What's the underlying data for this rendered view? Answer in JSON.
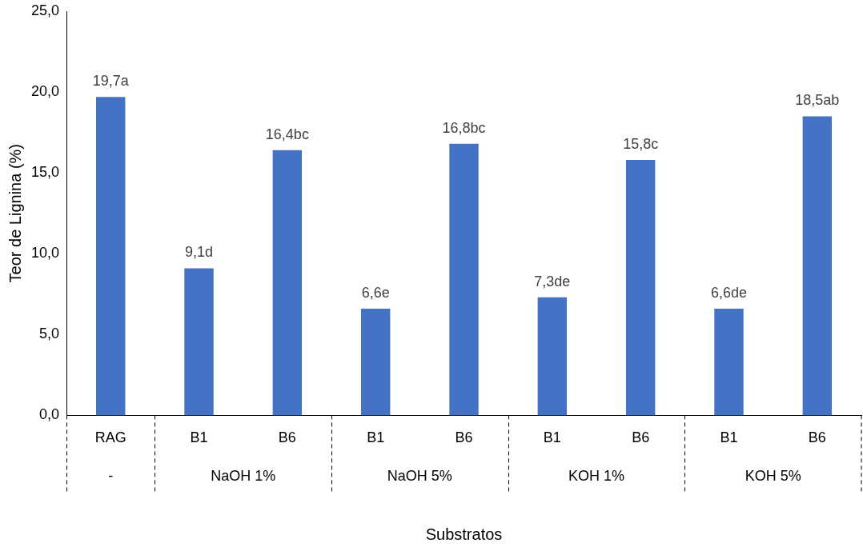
{
  "chart_data": {
    "type": "bar",
    "xlabel": "Substratos",
    "ylabel": "Teor de Lignina (%)",
    "categories": [
      "RAG",
      "B1",
      "B6",
      "B1",
      "B6",
      "B1",
      "B6",
      "B1",
      "B6"
    ],
    "values": [
      19.7,
      9.1,
      16.4,
      6.6,
      16.8,
      7.3,
      15.8,
      6.6,
      18.5
    ],
    "value_labels": [
      "19,7a",
      "9,1d",
      "16,4bc",
      "6,6e",
      "16,8bc",
      "7,3de",
      "15,8c",
      "6,6de",
      "18,5ab"
    ],
    "color": "#4472c4",
    "ylim": [
      0,
      25
    ],
    "yticks": [
      {
        "value": 0,
        "label": "0,0"
      },
      {
        "value": 5,
        "label": "5,0"
      },
      {
        "value": 10,
        "label": "10,0"
      },
      {
        "value": 15,
        "label": "15,0"
      },
      {
        "value": 20,
        "label": "20,0"
      },
      {
        "value": 25,
        "label": "25,0"
      }
    ],
    "annotations": [
      "-",
      "NaOH 1%",
      "NaOH 5%",
      "KOH 1%",
      "KOH 5%"
    ],
    "grid": false,
    "legend": false
  }
}
